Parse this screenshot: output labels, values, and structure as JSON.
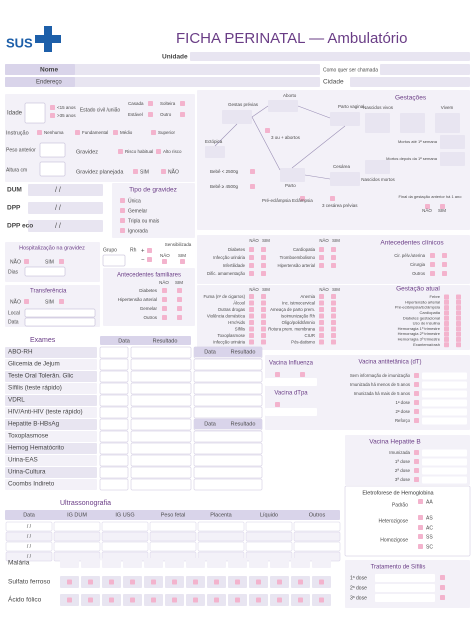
{
  "header": {
    "logo": "SUS",
    "title": "FICHA PERINATAL — Ambulatório"
  },
  "identification": {
    "unit": "Unidade",
    "name": "Nome",
    "nickname": "Como quer ser chamada",
    "address": "Endereço",
    "city": "Cidade"
  },
  "profile": {
    "age": "Idade",
    "age_ranges": [
      "<15 anos",
      ">35 anos"
    ],
    "marital": "Estado civil /união",
    "marital_options": [
      "Casada",
      "Solteira",
      "Estável",
      "Outro"
    ],
    "education": "Instrução",
    "education_options": [
      "Nenhuma",
      "Fundamental",
      "Médio",
      "Superior"
    ],
    "prior_weight": "Peso anterior",
    "height": "Altura cm",
    "pregnancy": "Gravidez",
    "risk_options": [
      "Risco habitual",
      "Alto risco"
    ],
    "planned": "Gravidez planejada",
    "planned_options": [
      "SIM",
      "NÃO"
    ]
  },
  "obstetric_history": {
    "abortion": "Aborto",
    "prior": "Gestas prévias",
    "vaginal": "Parto vaginal",
    "gestations": "Gestações",
    "live_born": "Nascidos vivos",
    "living": "Vivem",
    "three_abortions": "3 ou + abortos",
    "ectopic": "Ectópica",
    "low_weight": "Bebê < 2500g",
    "high_weight": "Bebê ≥ 4500g",
    "preeclampsia": "Pré-eclâmpsia Eclâmpsia",
    "birth": "Parto",
    "cesarean": "Cesárea",
    "prior_cesareans": "3 cesárea prévias",
    "died_first_week": "Mortos até 1ª semana",
    "died_after": "Mortos depois da 1ª semana",
    "stillborn": "Nascidos mortos",
    "recent": "Final da gestação anterior há 1 ano",
    "no_yes": [
      "NÃO",
      "SIM"
    ]
  },
  "dates": {
    "items": [
      "DUM",
      "DPP",
      "DPP eco"
    ],
    "placeholder": "/    /"
  },
  "pregnancy_type": {
    "title": "Tipo de gravidez",
    "options": [
      "Única",
      "Gemelar",
      "Tripla ou mais",
      "Ignorada"
    ]
  },
  "hospitalization": {
    "title": "Hospitalização na gravidez",
    "options": [
      "NÃO",
      "SIM"
    ],
    "days": "Dias"
  },
  "blood": {
    "group": "Grupo",
    "rh": "Rh",
    "signs": [
      "+",
      "−"
    ],
    "sensitized": "Sensibilizada",
    "options": [
      "NÃO",
      "SIM"
    ]
  },
  "family": {
    "title": "Antecedentes familiares",
    "header": [
      "NÃO",
      "SIM"
    ],
    "items": [
      "Diabetes",
      "Hipertensão arterial",
      "Gemelar",
      "Outros"
    ]
  },
  "transfer": {
    "title": "Transferência",
    "options": [
      "NÃO",
      "SIM"
    ],
    "place": "Local",
    "date": "Data"
  },
  "clinical": {
    "title": "Antecedentes clínicos",
    "header": [
      "NÃO",
      "SIM"
    ],
    "left": [
      "Diabetes",
      "Infecção urinária",
      "Infertilidade",
      "Dific. amamentação"
    ],
    "middle": [
      "Cardiopatia",
      "Tromboembolismo",
      "Hipertensão arterial"
    ],
    "right": [
      "Cir. pélv./uterina",
      "Cirurgia",
      "Outros"
    ]
  },
  "current": {
    "title": "Gestação atual",
    "header": [
      "NÃO",
      "SIM"
    ],
    "left": [
      "Fuma (nº de cigarros)",
      "Álcool",
      "Outras drogas",
      "Violência doméstica",
      "HIV/Aids",
      "Sífilis",
      "Toxoplasmose",
      "Infecção urinária"
    ],
    "middle": [
      "Anemia",
      "Inc. istmocervical",
      "Ameaça de parto prem.",
      "Isoimunização Rh",
      "Oligo/polidrâmnio",
      "Rotura prem. membrana",
      "CIUR",
      "Pós-datismo"
    ],
    "right": [
      "Febre",
      "Hipertensão arterial",
      "Pré-eclâmpsia/Eclâmpsia",
      "Cardiopatia",
      "Diabetes gestacional",
      "Uso de insulina",
      "Hemorragia 1º trimestre",
      "Hemorragia 2º trimestre",
      "Hemorragia 3º trimestre",
      "Exantema/rash"
    ]
  },
  "exams": {
    "title": "Exames",
    "date": "Data",
    "result": "Resultado",
    "items": [
      "ABO-RH",
      "Glicemia de Jejum",
      "Teste Oral Tolerân. Glic",
      "Sífilis (teste rápido)",
      "VDRL",
      "HIV/Anti-HIV (teste rápido)",
      "Hepatite B-HBsAg",
      "Toxoplasmose",
      "Hemog Hematócrito",
      "Urina-EAS",
      "Urina-Cultura",
      "Coombs Indireto"
    ]
  },
  "vaccines": {
    "influenza": "Vacina Influenza",
    "dtpa": "Vacina dTpa",
    "dt_title": "Vacina antitetânica (dT)",
    "dt_items": [
      "Sem informação de imunização",
      "Imunizada há menos de 5 anos",
      "Imunizada há mais de 5 anos",
      "1ª dose",
      "2ª dose",
      "Reforço"
    ],
    "hepb_title": "Vacina Hepatite B",
    "hepb_items": [
      "Imunizada",
      "1ª dose",
      "2ª dose",
      "3ª dose"
    ]
  },
  "electrophoresis": {
    "title": "Eletroforese de Hemoglobina",
    "standard": "Padrão",
    "heterozygous": "Heterozigose",
    "homozygous": "Homozigose",
    "std_options": [
      "AA"
    ],
    "het_options": [
      "AS",
      "AC"
    ],
    "hom_options": [
      "SS",
      "SC"
    ]
  },
  "syphilis_treatment": {
    "title": "Tratamento de Sífilis",
    "items": [
      "1ª dose",
      "2ª dose",
      "3ª dose"
    ]
  },
  "ultrasound": {
    "title": "Ultrassonografia",
    "columns": [
      "Data",
      "IG DUM",
      "IG USG",
      "Peso fetal",
      "Placenta",
      "Líquido",
      "Outros"
    ]
  },
  "supplements": {
    "malaria": "Malária",
    "items": [
      "Sulfato ferroso",
      "Ácido fólico"
    ]
  }
}
